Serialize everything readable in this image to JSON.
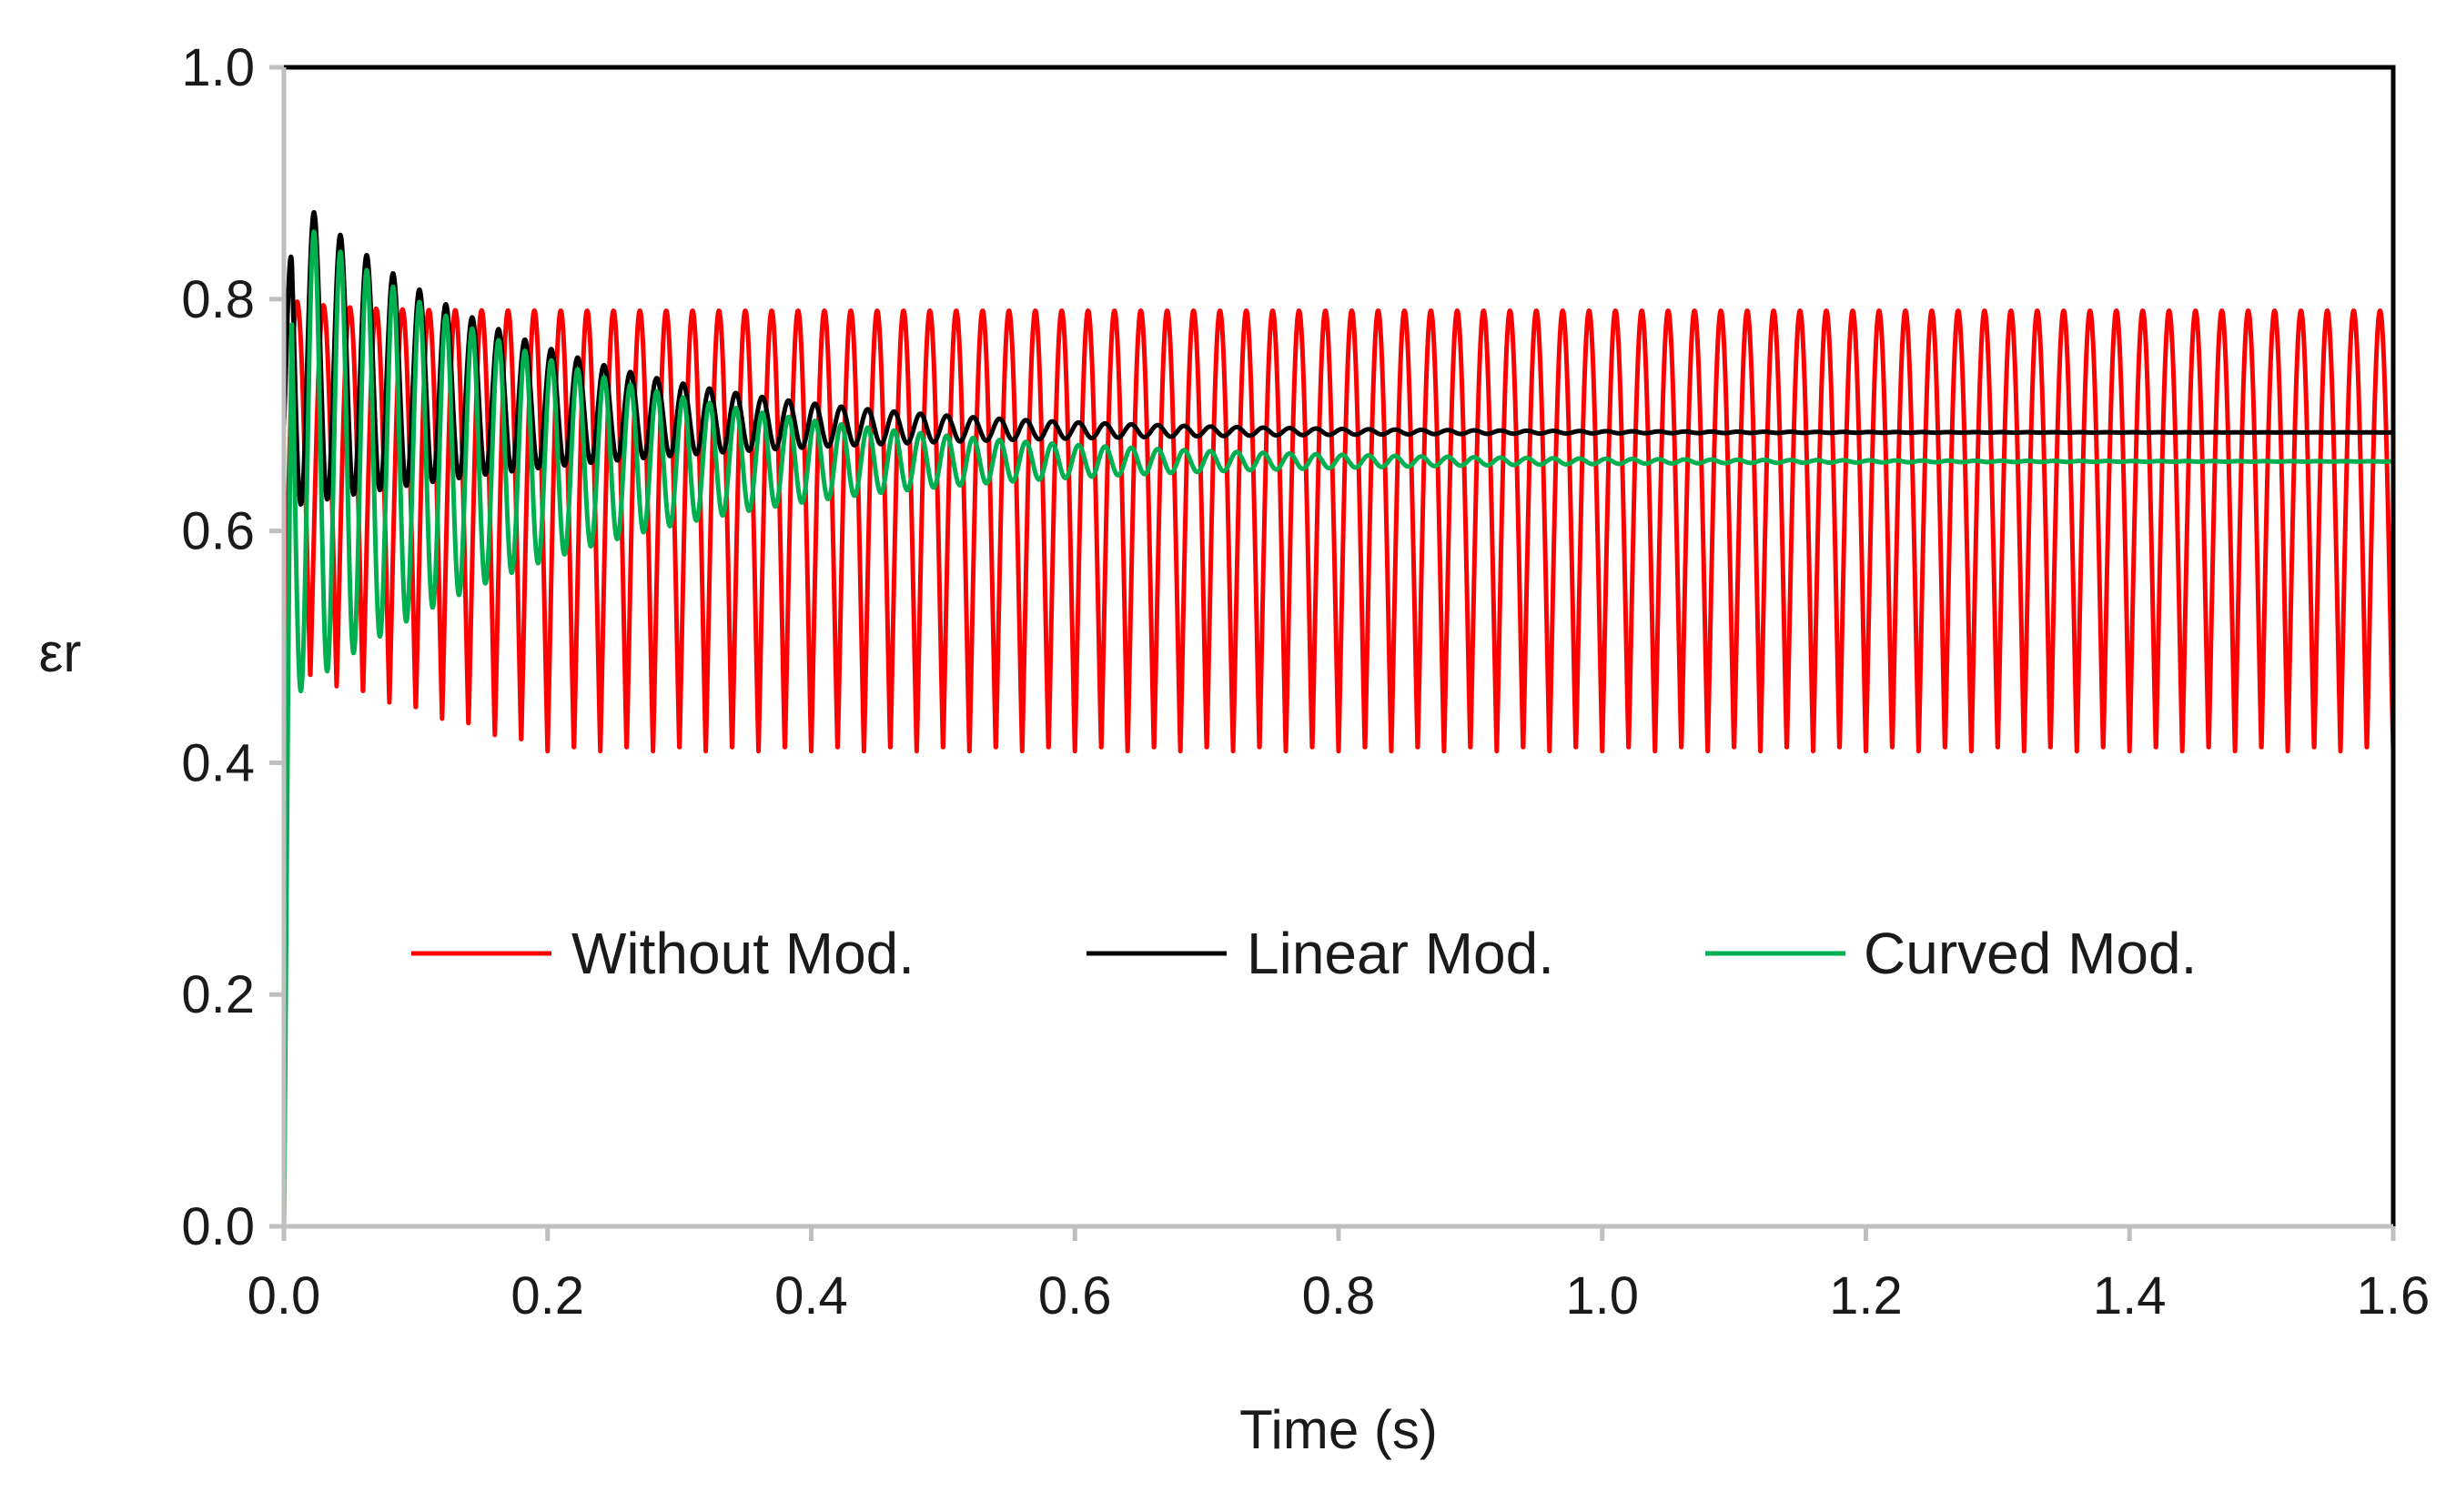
{
  "chart_data": {
    "type": "line",
    "title": "",
    "xlabel": "Time (s)",
    "ylabel": "εr",
    "xlim": [
      0,
      1.6
    ],
    "ylim": [
      0,
      1.0
    ],
    "x_ticks": [
      0.0,
      0.2,
      0.4,
      0.6,
      0.8,
      1.0,
      1.2,
      1.4,
      1.6
    ],
    "y_ticks": [
      0.0,
      0.2,
      0.4,
      0.6,
      0.8,
      1.0
    ],
    "x_tick_labels": [
      "0.0",
      "0.2",
      "0.4",
      "0.6",
      "0.8",
      "1.0",
      "1.2",
      "1.4",
      "1.6"
    ],
    "y_tick_labels": [
      "0.0",
      "0.2",
      "0.4",
      "0.6",
      "0.8",
      "1.0"
    ],
    "grid": false,
    "legend_position": "center",
    "series": [
      {
        "name": "Without Mod.",
        "color": "#ff0000",
        "description": "sustained oscillation between about 0.41 and 0.79",
        "start_value": 0.0,
        "oscillation_frequency_hz": 50,
        "initial_peak": 0.8,
        "initial_trough": 0.48,
        "steady_max": 0.79,
        "steady_min": 0.41,
        "settle_time_s": 0.2
      },
      {
        "name": "Linear Mod.",
        "color": "#000000",
        "description": "damped oscillation settling at about 0.685",
        "start_value": 0.69,
        "oscillation_frequency_hz": 50,
        "initial_peak": 0.9,
        "initial_trough": 0.62,
        "steady_value": 0.685,
        "decay_time_constant_s": 0.2
      },
      {
        "name": "Curved Mod.",
        "color": "#00b050",
        "description": "damped oscillation settling at about 0.66",
        "start_value": 0.0,
        "oscillation_frequency_hz": 50,
        "initial_peak": 0.88,
        "initial_trough": 0.45,
        "steady_value": 0.66,
        "decay_time_constant_s": 0.22
      }
    ]
  }
}
